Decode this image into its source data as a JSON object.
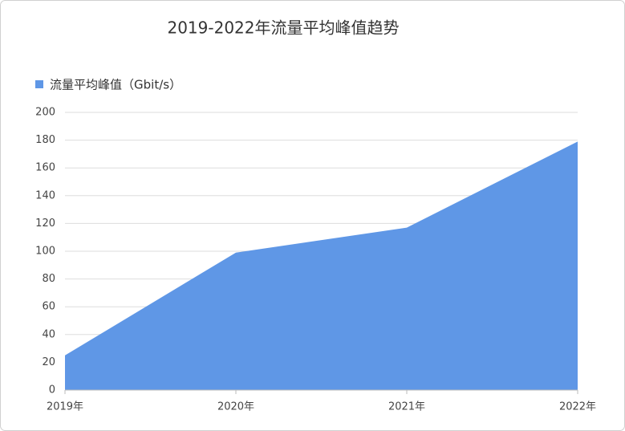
{
  "chart_data": {
    "type": "area",
    "title": "2019-2022年流量平均峰值趋势",
    "categories": [
      "2019年",
      "2020年",
      "2021年",
      "2022年"
    ],
    "series": [
      {
        "name": "流量平均峰值（Gbit/s）",
        "color": "#5f97e6",
        "values": [
          25,
          99,
          117,
          179
        ]
      }
    ],
    "ylim": [
      0,
      200
    ],
    "yticks": [
      0,
      20,
      40,
      60,
      80,
      100,
      120,
      140,
      160,
      180,
      200
    ],
    "grid": true,
    "legend": "top-left"
  }
}
